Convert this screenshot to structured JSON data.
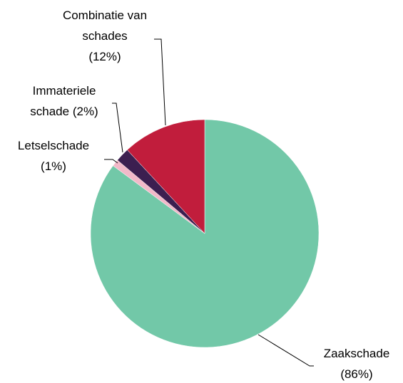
{
  "chart_data": {
    "type": "pie",
    "categories": [
      "Zaakschade",
      "Letselschade",
      "Immateriele schade",
      "Combinatie van schades"
    ],
    "values": [
      86,
      1,
      2,
      12
    ],
    "value_labels": [
      "(86%)",
      "(1%)",
      "(2%)",
      "(12%)"
    ],
    "colors": [
      "#72c8a8",
      "#f2b9c9",
      "#3c1f50",
      "#c11d3c"
    ]
  }
}
